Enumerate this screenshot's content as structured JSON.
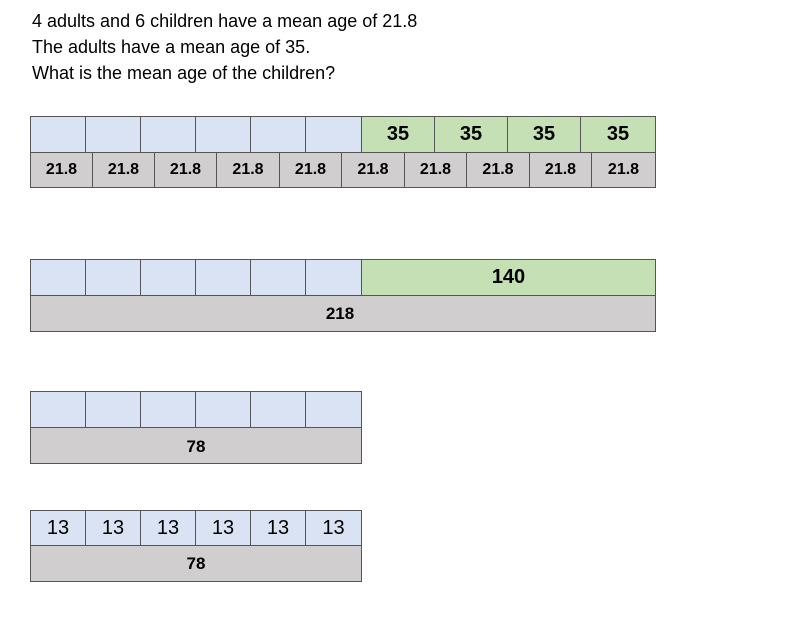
{
  "question": [
    "4 adults and 6 children have a mean age of 21.8",
    "The adults have a mean age of 35.",
    "What is the mean age of the children?"
  ],
  "model1": {
    "children_boxes": [
      "",
      "",
      "",
      "",
      "",
      ""
    ],
    "adult_boxes": [
      "35",
      "35",
      "35",
      "35"
    ],
    "mean_boxes": [
      "21.8",
      "21.8",
      "21.8",
      "21.8",
      "21.8",
      "21.8",
      "21.8",
      "21.8",
      "21.8",
      "21.8"
    ]
  },
  "model2": {
    "children_boxes": [
      "",
      "",
      "",
      "",
      "",
      ""
    ],
    "adults_total": "140",
    "overall_total": "218"
  },
  "model3": {
    "children_boxes": [
      "",
      "",
      "",
      "",
      "",
      ""
    ],
    "children_total": "78"
  },
  "model4": {
    "children_boxes": [
      "13",
      "13",
      "13",
      "13",
      "13",
      "13"
    ],
    "children_total": "78"
  },
  "colors": {
    "children": "#dae3f3",
    "adults": "#c5e0b4",
    "total": "#d0cece"
  }
}
